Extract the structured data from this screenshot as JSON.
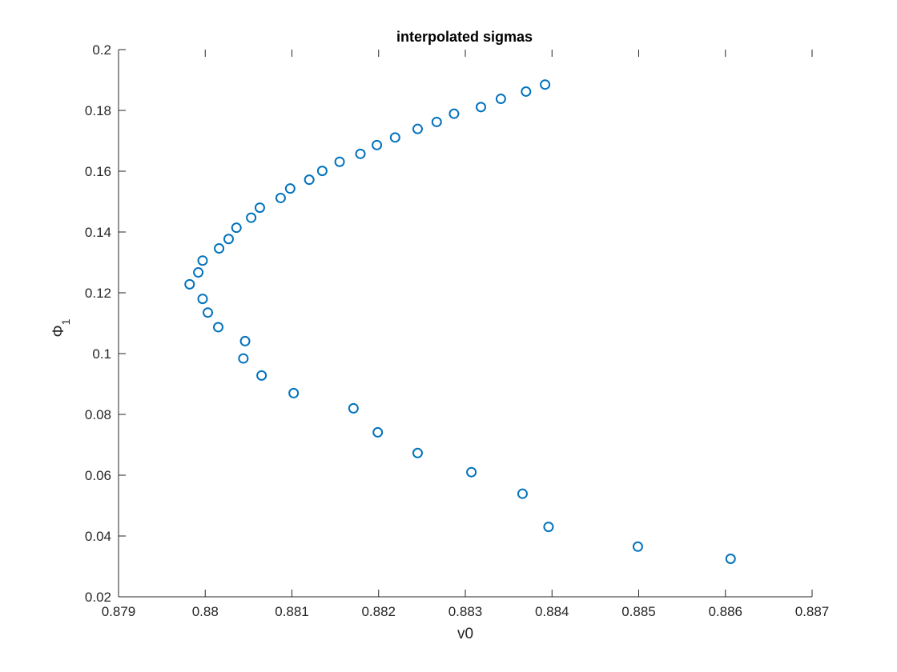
{
  "chart_data": {
    "type": "scatter",
    "title": "interpolated sigmas",
    "xlabel": "v0",
    "ylabel": {
      "base": "Φ",
      "subscript": "1"
    },
    "xlim": [
      0.879,
      0.887
    ],
    "ylim": [
      0.02,
      0.2
    ],
    "xticks": [
      0.879,
      0.88,
      0.881,
      0.882,
      0.883,
      0.884,
      0.885,
      0.886,
      0.887
    ],
    "xtick_labels": [
      "0.879",
      "0.88",
      "0.881",
      "0.882",
      "0.883",
      "0.884",
      "0.885",
      "0.886",
      "0.887"
    ],
    "yticks": [
      0.02,
      0.04,
      0.06,
      0.08,
      0.1,
      0.12,
      0.14,
      0.16,
      0.18,
      0.2
    ],
    "ytick_labels": [
      "0.02",
      "0.04",
      "0.06",
      "0.08",
      "0.1",
      "0.12",
      "0.14",
      "0.16",
      "0.18",
      "0.2"
    ],
    "grid": false,
    "marker": "circle-open",
    "color": "#0072BD",
    "series": [
      {
        "points": [
          {
            "x": 0.88392,
            "y": 0.1885
          },
          {
            "x": 0.8837,
            "y": 0.1862
          },
          {
            "x": 0.88341,
            "y": 0.1838
          },
          {
            "x": 0.88318,
            "y": 0.1811
          },
          {
            "x": 0.88287,
            "y": 0.1789
          },
          {
            "x": 0.88267,
            "y": 0.1762
          },
          {
            "x": 0.88245,
            "y": 0.1739
          },
          {
            "x": 0.88219,
            "y": 0.1711
          },
          {
            "x": 0.88198,
            "y": 0.1686
          },
          {
            "x": 0.88179,
            "y": 0.1657
          },
          {
            "x": 0.88155,
            "y": 0.1631
          },
          {
            "x": 0.88135,
            "y": 0.1601
          },
          {
            "x": 0.8812,
            "y": 0.1572
          },
          {
            "x": 0.88098,
            "y": 0.1543
          },
          {
            "x": 0.88087,
            "y": 0.1512
          },
          {
            "x": 0.88063,
            "y": 0.148
          },
          {
            "x": 0.88053,
            "y": 0.1447
          },
          {
            "x": 0.88036,
            "y": 0.1414
          },
          {
            "x": 0.88027,
            "y": 0.1377
          },
          {
            "x": 0.88016,
            "y": 0.1346
          },
          {
            "x": 0.87997,
            "y": 0.1306
          },
          {
            "x": 0.87992,
            "y": 0.1267
          },
          {
            "x": 0.87982,
            "y": 0.1228
          },
          {
            "x": 0.87997,
            "y": 0.118
          },
          {
            "x": 0.88003,
            "y": 0.1135
          },
          {
            "x": 0.88015,
            "y": 0.1087
          },
          {
            "x": 0.88046,
            "y": 0.1041
          },
          {
            "x": 0.88044,
            "y": 0.0984
          },
          {
            "x": 0.88065,
            "y": 0.0928
          },
          {
            "x": 0.88102,
            "y": 0.087
          },
          {
            "x": 0.88171,
            "y": 0.082
          },
          {
            "x": 0.88199,
            "y": 0.0741
          },
          {
            "x": 0.88245,
            "y": 0.0673
          },
          {
            "x": 0.88307,
            "y": 0.061
          },
          {
            "x": 0.88366,
            "y": 0.0539
          },
          {
            "x": 0.88396,
            "y": 0.043
          },
          {
            "x": 0.88499,
            "y": 0.0365
          },
          {
            "x": 0.88606,
            "y": 0.0325
          }
        ]
      }
    ]
  }
}
